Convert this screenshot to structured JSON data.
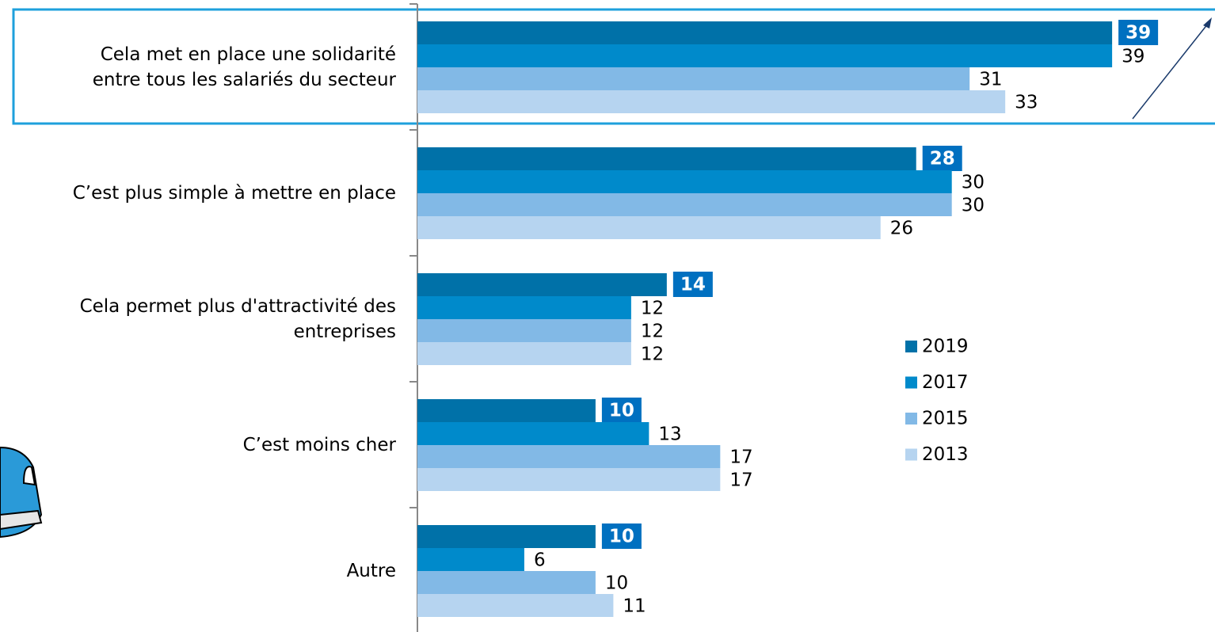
{
  "chart_data": {
    "type": "bar",
    "orientation": "horizontal",
    "categories": [
      "Cela met en place une solidarité\nentre tous les salariés du secteur",
      "C’est plus simple à mettre en place",
      "Cela permet plus d'attractivité des\nentreprises",
      "C’est moins cher",
      "Autre"
    ],
    "series": [
      {
        "name": "2019",
        "color": "#0071a8",
        "values": [
          39,
          28,
          14,
          10,
          10
        ]
      },
      {
        "name": "2017",
        "color": "#008acb",
        "values": [
          39,
          30,
          12,
          13,
          6
        ]
      },
      {
        "name": "2015",
        "color": "#82b9e6",
        "values": [
          31,
          30,
          12,
          17,
          10
        ]
      },
      {
        "name": "2013",
        "color": "#b6d4f0",
        "values": [
          33,
          26,
          12,
          17,
          11
        ]
      }
    ],
    "highlight_series": 0,
    "highlight_color": "#0070c0"
  }
}
